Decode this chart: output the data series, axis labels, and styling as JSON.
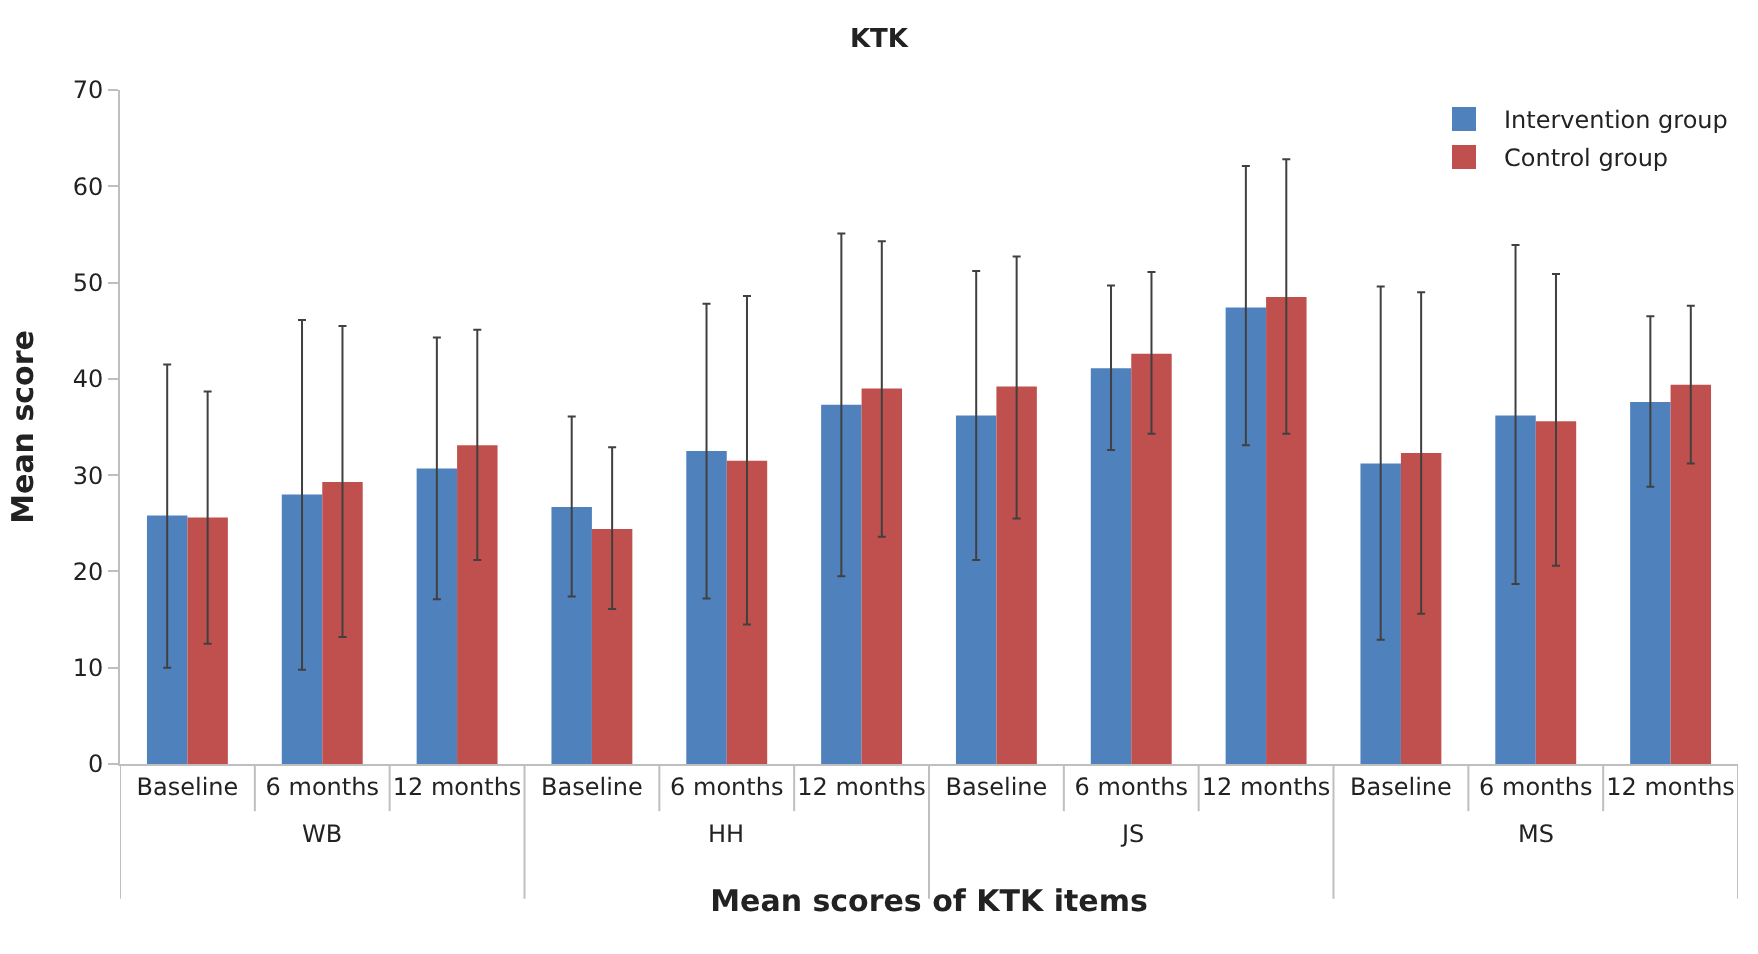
{
  "chart_data": {
    "type": "bar",
    "title": "KTK",
    "xlabel": "Mean scores of KTK items",
    "ylabel": "Mean score",
    "categories": [
      "Baseline",
      "6 months",
      "12 months",
      "Baseline",
      "6 months",
      "12 months",
      "Baseline",
      "6 months",
      "12 months",
      "Baseline",
      "6 months",
      "12 months"
    ],
    "annotations": [
      "WB",
      "HH",
      "JS",
      "MS"
    ],
    "series": [
      {
        "name": "Intervention group",
        "color": "#4f81bd",
        "values": [
          25.8,
          28,
          30.7,
          26.7,
          32.5,
          37.3,
          36.2,
          41.1,
          47.4,
          31.2,
          36.2,
          37.6
        ],
        "errors": [
          [
            10,
            41.5
          ],
          [
            9.8,
            46.1
          ],
          [
            17.1,
            44.3
          ],
          [
            17.4,
            36.1
          ],
          [
            17.2,
            47.8
          ],
          [
            19.5,
            55.1
          ],
          [
            21.2,
            51.2
          ],
          [
            32.6,
            49.7
          ],
          [
            33.1,
            62.1
          ],
          [
            12.9,
            49.6
          ],
          [
            18.7,
            53.9
          ],
          [
            28.8,
            46.5
          ]
        ]
      },
      {
        "name": "Control group",
        "color": "#c0504d",
        "values": [
          25.6,
          29.3,
          33.1,
          24.4,
          31.5,
          39.0,
          39.2,
          42.6,
          48.5,
          32.3,
          35.6,
          39.4
        ],
        "errors": [
          [
            12.5,
            38.7
          ],
          [
            13.2,
            45.5
          ],
          [
            21.2,
            45.1
          ],
          [
            16.1,
            32.9
          ],
          [
            14.5,
            48.6
          ],
          [
            23.6,
            54.3
          ],
          [
            25.5,
            52.7
          ],
          [
            34.3,
            51.1
          ],
          [
            34.3,
            62.8
          ],
          [
            15.6,
            49
          ],
          [
            20.6,
            50.9
          ],
          [
            31.2,
            47.6
          ]
        ]
      }
    ],
    "ylim": [
      0,
      70
    ],
    "yticks": [
      0,
      10,
      20,
      30,
      40,
      50,
      60,
      70
    ],
    "grid": false,
    "legend": "top right"
  }
}
